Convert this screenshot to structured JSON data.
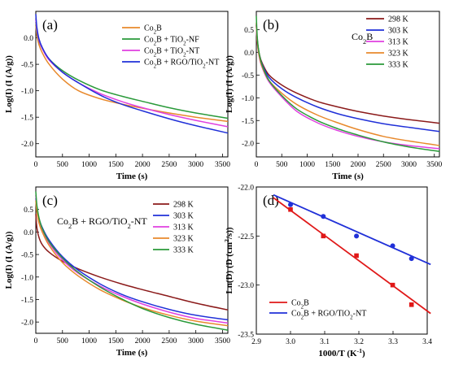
{
  "chart_data": [
    {
      "panel": "(a)",
      "type": "line",
      "xlabel": "Time (s)",
      "ylabel": "Log(I) (I (A/g))",
      "xlim": [
        0,
        3600
      ],
      "ylim": [
        -2.25,
        0.5
      ],
      "xticks": [
        0,
        500,
        1000,
        1500,
        2000,
        2500,
        3000,
        3500
      ],
      "yticks": [
        -2.0,
        -1.5,
        -1.0,
        -0.5,
        0.0
      ],
      "legend": "top-right",
      "series": [
        {
          "name": "Co2B",
          "legend_main": "Co",
          "legend_sub": "2",
          "legend_rest": "B",
          "legend_sub2": "",
          "legend_rest2": "",
          "color": "#e8892c",
          "x": [
            0,
            20,
            60,
            120,
            250,
            500,
            800,
            1200,
            1600,
            2000,
            2500,
            3000,
            3600
          ],
          "y": [
            0.25,
            0.05,
            -0.13,
            -0.28,
            -0.5,
            -0.78,
            -1.0,
            -1.15,
            -1.25,
            -1.33,
            -1.42,
            -1.5,
            -1.58
          ]
        },
        {
          "name": "Co2B + TiO2-NF",
          "legend_main": "Co",
          "legend_sub": "2",
          "legend_rest": "B + TiO",
          "legend_sub2": "2",
          "legend_rest2": "-NF",
          "color": "#2a9a3a",
          "x": [
            0,
            20,
            60,
            120,
            250,
            500,
            800,
            1200,
            1600,
            2000,
            2500,
            3000,
            3600
          ],
          "y": [
            0.3,
            0.12,
            -0.06,
            -0.2,
            -0.4,
            -0.62,
            -0.8,
            -0.98,
            -1.1,
            -1.2,
            -1.32,
            -1.42,
            -1.52
          ]
        },
        {
          "name": "Co2B + TiO2-NT",
          "legend_main": "Co",
          "legend_sub": "2",
          "legend_rest": "B + TiO",
          "legend_sub2": "2",
          "legend_rest2": "-NT",
          "color": "#e040e0",
          "x": [
            0,
            20,
            60,
            120,
            250,
            500,
            800,
            1200,
            1600,
            2000,
            2500,
            3000,
            3600
          ],
          "y": [
            0.35,
            0.15,
            -0.05,
            -0.2,
            -0.42,
            -0.65,
            -0.85,
            -1.05,
            -1.2,
            -1.32,
            -1.45,
            -1.56,
            -1.68
          ]
        },
        {
          "name": "Co2B + RGO/TiO2-NT",
          "legend_main": "Co",
          "legend_sub": "2",
          "legend_rest": "B + RGO/TiO",
          "legend_sub2": "2",
          "legend_rest2": "-NT",
          "color": "#2030d8",
          "x": [
            0,
            20,
            60,
            120,
            250,
            500,
            800,
            1200,
            1600,
            2000,
            2500,
            3000,
            3600
          ],
          "y": [
            0.45,
            0.2,
            -0.02,
            -0.18,
            -0.4,
            -0.65,
            -0.85,
            -1.08,
            -1.25,
            -1.38,
            -1.53,
            -1.66,
            -1.8
          ]
        }
      ]
    },
    {
      "panel": "(b)",
      "type": "line",
      "annotation_main": "Co",
      "annotation_sub": "2",
      "annotation_rest": "B",
      "xlabel": "Time (s)",
      "ylabel": "Log(I) (I (A/g))",
      "xlim": [
        0,
        3600
      ],
      "ylim": [
        -2.3,
        0.9
      ],
      "xticks": [
        0,
        500,
        1000,
        1500,
        2000,
        2500,
        3000,
        3500
      ],
      "yticks": [
        -2.0,
        -1.5,
        -1.0,
        -0.5,
        0.0,
        0.5
      ],
      "legend": "top-right",
      "series": [
        {
          "name": "298 K",
          "color": "#8b1a1a",
          "x": [
            0,
            20,
            60,
            120,
            250,
            500,
            800,
            1200,
            1600,
            2000,
            2500,
            3000,
            3600
          ],
          "y": [
            0.6,
            0.25,
            -0.05,
            -0.25,
            -0.5,
            -0.72,
            -0.9,
            -1.08,
            -1.2,
            -1.3,
            -1.4,
            -1.48,
            -1.56
          ]
        },
        {
          "name": "303 K",
          "color": "#2030d8",
          "x": [
            0,
            20,
            60,
            120,
            250,
            500,
            800,
            1200,
            1600,
            2000,
            2500,
            3000,
            3600
          ],
          "y": [
            0.62,
            0.25,
            -0.07,
            -0.28,
            -0.55,
            -0.8,
            -1.0,
            -1.2,
            -1.35,
            -1.46,
            -1.57,
            -1.65,
            -1.74
          ]
        },
        {
          "name": "313 K",
          "color": "#e040e0",
          "x": [
            0,
            20,
            60,
            120,
            250,
            500,
            800,
            1200,
            1600,
            2000,
            2500,
            3000,
            3600
          ],
          "y": [
            0.6,
            0.2,
            -0.12,
            -0.35,
            -0.65,
            -0.98,
            -1.3,
            -1.55,
            -1.72,
            -1.85,
            -1.97,
            -2.05,
            -2.12
          ]
        },
        {
          "name": "323 K",
          "color": "#e8892c",
          "x": [
            0,
            20,
            60,
            120,
            250,
            500,
            800,
            1200,
            1600,
            2000,
            2500,
            3000,
            3600
          ],
          "y": [
            0.65,
            0.22,
            -0.1,
            -0.33,
            -0.62,
            -0.9,
            -1.15,
            -1.38,
            -1.55,
            -1.7,
            -1.85,
            -1.95,
            -2.05
          ]
        },
        {
          "name": "333 K",
          "color": "#2a9a3a",
          "x": [
            0,
            20,
            60,
            120,
            250,
            500,
            800,
            1200,
            1600,
            2000,
            2500,
            3000,
            3600
          ],
          "y": [
            0.8,
            0.3,
            -0.05,
            -0.3,
            -0.62,
            -0.95,
            -1.25,
            -1.5,
            -1.68,
            -1.82,
            -1.97,
            -2.08,
            -2.18
          ]
        }
      ]
    },
    {
      "panel": "(c)",
      "type": "line",
      "annotation_main": "Co",
      "annotation_sub": "2",
      "annotation_rest": "B + RGO/TiO",
      "annotation_sub2": "2",
      "annotation_rest2": "-NT",
      "xlabel": "Time (s)",
      "ylabel": "Log(I) (I (A/g))",
      "xlim": [
        0,
        3600
      ],
      "ylim": [
        -2.25,
        1.0
      ],
      "xticks": [
        0,
        500,
        1000,
        1500,
        2000,
        2500,
        3000,
        3500
      ],
      "yticks": [
        -2.0,
        -1.5,
        -1.0,
        -0.5,
        0.0,
        0.5
      ],
      "legend": "top-right",
      "series": [
        {
          "name": "298 K",
          "color": "#8b1a1a",
          "x": [
            0,
            20,
            60,
            120,
            250,
            500,
            800,
            1200,
            1600,
            2000,
            2500,
            3000,
            3600
          ],
          "y": [
            0.4,
            0.1,
            -0.12,
            -0.28,
            -0.45,
            -0.65,
            -0.82,
            -1.0,
            -1.15,
            -1.28,
            -1.43,
            -1.58,
            -1.73
          ]
        },
        {
          "name": "303 K",
          "color": "#2030d8",
          "x": [
            0,
            20,
            60,
            120,
            250,
            500,
            800,
            1200,
            1600,
            2000,
            2500,
            3000,
            3600
          ],
          "y": [
            0.75,
            0.52,
            0.3,
            0.1,
            -0.18,
            -0.55,
            -0.85,
            -1.15,
            -1.38,
            -1.55,
            -1.72,
            -1.85,
            -1.95
          ]
        },
        {
          "name": "313 K",
          "color": "#e040e0",
          "x": [
            0,
            20,
            60,
            120,
            250,
            500,
            800,
            1200,
            1600,
            2000,
            2500,
            3000,
            3600
          ],
          "y": [
            0.82,
            0.55,
            0.28,
            0.05,
            -0.25,
            -0.62,
            -0.92,
            -1.2,
            -1.42,
            -1.6,
            -1.78,
            -1.92,
            -2.02
          ]
        },
        {
          "name": "323 K",
          "color": "#e8892c",
          "x": [
            0,
            20,
            60,
            120,
            250,
            500,
            800,
            1200,
            1600,
            2000,
            2500,
            3000,
            3600
          ],
          "y": [
            0.7,
            0.45,
            0.2,
            0.0,
            -0.3,
            -0.68,
            -0.98,
            -1.28,
            -1.5,
            -1.68,
            -1.85,
            -1.98,
            -2.08
          ]
        },
        {
          "name": "333 K",
          "color": "#2a9a3a",
          "x": [
            0,
            20,
            60,
            120,
            250,
            500,
            800,
            1200,
            1600,
            2000,
            2500,
            3000,
            3600
          ],
          "y": [
            0.9,
            0.6,
            0.32,
            0.08,
            -0.22,
            -0.58,
            -0.9,
            -1.22,
            -1.48,
            -1.7,
            -1.9,
            -2.05,
            -2.18
          ]
        }
      ]
    },
    {
      "panel": "(d)",
      "type": "scatter",
      "xlabel_main": "1000/T (K",
      "xlabel_sup": "-1",
      "xlabel_end": ")",
      "ylabel_main": "Ln(D) (D (cm",
      "ylabel_sup": "2",
      "ylabel_end": "/s))",
      "xlim": [
        2.9,
        3.4
      ],
      "ylim": [
        -23.5,
        -22.0
      ],
      "xticks": [
        2.9,
        3.0,
        3.1,
        3.2,
        3.3,
        3.4
      ],
      "yticks": [
        -23.5,
        -23.0,
        -22.5,
        -22.0
      ],
      "legend": "bottom-left",
      "series": [
        {
          "name": "Co2B",
          "legend_main": "Co",
          "legend_sub": "2",
          "legend_rest": "B",
          "legend_sub2": "",
          "legend_rest2": "",
          "color": "#e01818",
          "marker": "square",
          "x": [
            3.0,
            3.096,
            3.193,
            3.299,
            3.354
          ],
          "y": [
            -22.23,
            -22.5,
            -22.7,
            -23.0,
            -23.2
          ],
          "fit_x": [
            2.95,
            3.41
          ],
          "fit_y": [
            -22.11,
            -23.29
          ]
        },
        {
          "name": "Co2B + RGO/TiO2-NT",
          "legend_main": "Co",
          "legend_sub": "2",
          "legend_rest": "B + RGO/TiO",
          "legend_sub2": "2",
          "legend_rest2": "-NT",
          "color": "#2030d8",
          "marker": "circle",
          "x": [
            3.0,
            3.096,
            3.193,
            3.299,
            3.354
          ],
          "y": [
            -22.18,
            -22.3,
            -22.5,
            -22.6,
            -22.73
          ],
          "fit_x": [
            2.95,
            3.41
          ],
          "fit_y": [
            -22.08,
            -22.79
          ]
        }
      ]
    }
  ]
}
